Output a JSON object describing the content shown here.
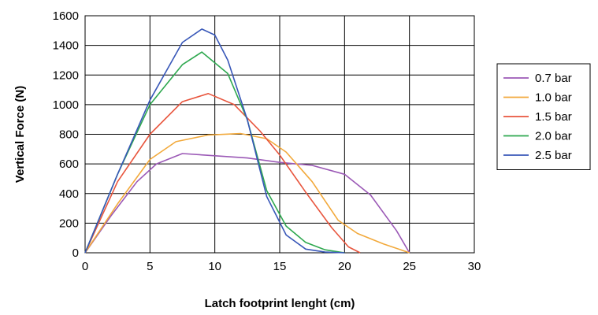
{
  "chart_data": {
    "type": "line",
    "title": "",
    "xlabel": "Latch footprint lenght (cm)",
    "ylabel": "Vertical Force (N)",
    "xlim": [
      0,
      30
    ],
    "ylim": [
      0,
      1600
    ],
    "xticks": [
      0,
      5,
      10,
      15,
      20,
      25,
      30
    ],
    "yticks": [
      0,
      200,
      400,
      600,
      800,
      1000,
      1200,
      1400,
      1600
    ],
    "grid": true,
    "legend_position": "right",
    "series": [
      {
        "name": "0.7 bar",
        "color": "#9b59b6",
        "points": [
          [
            0,
            0
          ],
          [
            2,
            250
          ],
          [
            4,
            480
          ],
          [
            5.5,
            600
          ],
          [
            7.5,
            670
          ],
          [
            10,
            655
          ],
          [
            12.5,
            640
          ],
          [
            15,
            610
          ],
          [
            17.5,
            590
          ],
          [
            20,
            530
          ],
          [
            22,
            390
          ],
          [
            24,
            150
          ],
          [
            25,
            0
          ]
        ]
      },
      {
        "name": "1.0 bar",
        "color": "#f2a93b",
        "points": [
          [
            0,
            0
          ],
          [
            2.5,
            330
          ],
          [
            5,
            630
          ],
          [
            7,
            750
          ],
          [
            9.5,
            795
          ],
          [
            12,
            805
          ],
          [
            14,
            770
          ],
          [
            15.5,
            680
          ],
          [
            17.5,
            480
          ],
          [
            19.5,
            220
          ],
          [
            21,
            130
          ],
          [
            23,
            60
          ],
          [
            25,
            0
          ]
        ]
      },
      {
        "name": "1.5 bar",
        "color": "#e8553d",
        "points": [
          [
            0,
            0
          ],
          [
            2.5,
            480
          ],
          [
            5,
            800
          ],
          [
            7.5,
            1020
          ],
          [
            9.5,
            1075
          ],
          [
            11.5,
            1000
          ],
          [
            13.5,
            820
          ],
          [
            15,
            660
          ],
          [
            17,
            410
          ],
          [
            19,
            170
          ],
          [
            20.3,
            40
          ],
          [
            21.2,
            0
          ]
        ]
      },
      {
        "name": "2.0 bar",
        "color": "#2ea84f",
        "points": [
          [
            0,
            0
          ],
          [
            2.5,
            530
          ],
          [
            5,
            1000
          ],
          [
            7.5,
            1270
          ],
          [
            9,
            1355
          ],
          [
            11,
            1210
          ],
          [
            12.5,
            900
          ],
          [
            14,
            420
          ],
          [
            15.5,
            180
          ],
          [
            17,
            70
          ],
          [
            18.5,
            20
          ],
          [
            20,
            0
          ]
        ]
      },
      {
        "name": "2.5 bar",
        "color": "#3857b8",
        "points": [
          [
            0,
            0
          ],
          [
            2.5,
            530
          ],
          [
            5,
            1030
          ],
          [
            7.5,
            1420
          ],
          [
            9,
            1510
          ],
          [
            10,
            1470
          ],
          [
            11,
            1300
          ],
          [
            12.5,
            900
          ],
          [
            14,
            380
          ],
          [
            15.5,
            120
          ],
          [
            17,
            25
          ],
          [
            18.5,
            5
          ],
          [
            20,
            0
          ]
        ]
      }
    ]
  }
}
